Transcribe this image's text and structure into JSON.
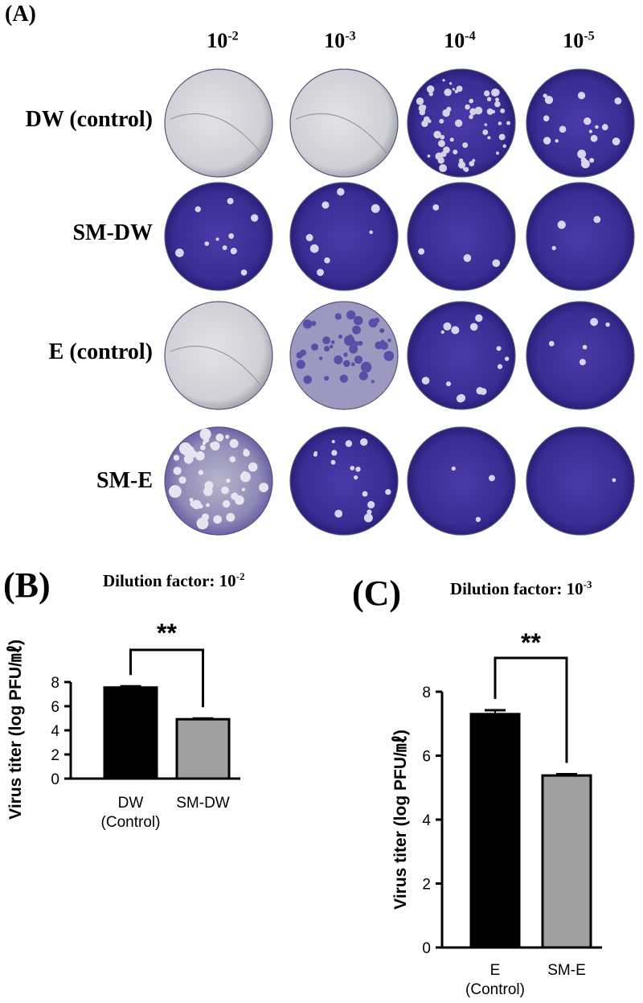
{
  "panel_a": {
    "label": "(A)",
    "dilution_base": "10",
    "dilutions": [
      {
        "base": "10",
        "exponent": "-2"
      },
      {
        "base": "10",
        "exponent": "-3"
      },
      {
        "base": "10",
        "exponent": "-4"
      },
      {
        "base": "10",
        "exponent": "-5"
      }
    ],
    "rows": [
      {
        "label": "DW (control)"
      },
      {
        "label": "SM-DW"
      },
      {
        "label": "E (control)"
      },
      {
        "label": "SM-E"
      }
    ],
    "colors": {
      "plate_stain": "#3c2f96",
      "plate_clear": "#d4d4da"
    }
  },
  "panel_b": {
    "label": "(B)",
    "title_prefix": "Dilution factor: 10",
    "title_exponent": "-2"
  },
  "panel_c": {
    "label": "(C)",
    "title_prefix": "Dilution factor: 10",
    "title_exponent": "-3"
  },
  "chart_data": [
    {
      "type": "bar",
      "categories": [
        [
          "DW",
          "(Control)"
        ],
        [
          "SM-DW"
        ]
      ],
      "values": [
        7.55,
        4.92
      ],
      "errors": [
        0.1,
        0.06
      ],
      "bar_colors": [
        "#000000",
        "#a0a0a0"
      ],
      "ylabel": "Virus titer (log PFU/㎖)",
      "ylim": [
        0,
        8
      ],
      "yticks": [
        "0",
        "2",
        "4",
        "6",
        "8"
      ],
      "significance": "**"
    },
    {
      "type": "bar",
      "categories": [
        [
          "E",
          "(Control)"
        ],
        [
          "SM-E"
        ]
      ],
      "values": [
        7.3,
        5.38
      ],
      "errors": [
        0.12,
        0.04
      ],
      "bar_colors": [
        "#000000",
        "#a0a0a0"
      ],
      "ylabel": "Virus titer (log PFU/㎖)",
      "ylim": [
        0,
        8
      ],
      "yticks": [
        "0",
        "2",
        "4",
        "6",
        "8"
      ],
      "significance": "**"
    }
  ]
}
